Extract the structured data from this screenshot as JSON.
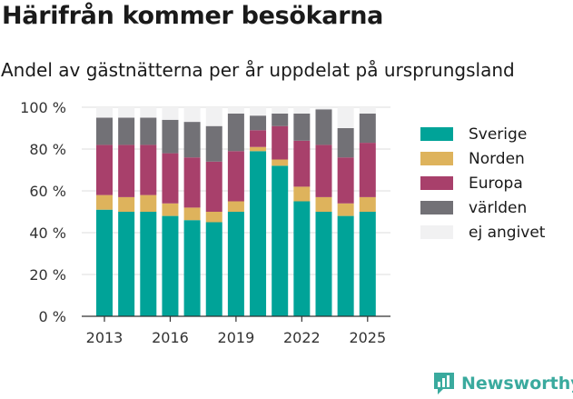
{
  "title": "Härifrån kommer besökarna",
  "subtitle": "Andel av gästnätterna per år uppdelat på ursprungsland",
  "brand": {
    "name": "Newsworthy"
  },
  "chart_data": {
    "type": "bar",
    "stacked": true,
    "categories": [
      "2013",
      "2014",
      "2015",
      "2016",
      "2017",
      "2018",
      "2019",
      "2020",
      "2021",
      "2022",
      "2023",
      "2024",
      "2025"
    ],
    "x_tick_labels": [
      "2013",
      "2016",
      "2019",
      "2022",
      "2025"
    ],
    "y_tick_labels": [
      "0 %",
      "20 %",
      "40 %",
      "60 %",
      "80 %",
      "100 %"
    ],
    "ylim": [
      0,
      100
    ],
    "grid": true,
    "legend_position": "right",
    "series": [
      {
        "name": "Sverige",
        "color": "#00a398",
        "values": [
          51,
          50,
          50,
          48,
          46,
          45,
          50,
          79,
          72,
          55,
          50,
          48,
          50
        ]
      },
      {
        "name": "Norden",
        "color": "#deb35c",
        "values": [
          7,
          7,
          8,
          6,
          6,
          5,
          5,
          2,
          3,
          7,
          7,
          6,
          7
        ]
      },
      {
        "name": "Europa",
        "color": "#a8406b",
        "values": [
          24,
          25,
          24,
          24,
          24,
          24,
          24,
          8,
          16,
          22,
          25,
          22,
          26
        ]
      },
      {
        "name": "världen",
        "color": "#727176",
        "values": [
          13,
          13,
          13,
          16,
          17,
          17,
          18,
          7,
          6,
          13,
          17,
          14,
          14
        ]
      },
      {
        "name": "ej angivet",
        "color": "#f1f1f2",
        "values": [
          5,
          5,
          5,
          6,
          7,
          9,
          3,
          4,
          3,
          3,
          1,
          10,
          3
        ]
      }
    ]
  }
}
